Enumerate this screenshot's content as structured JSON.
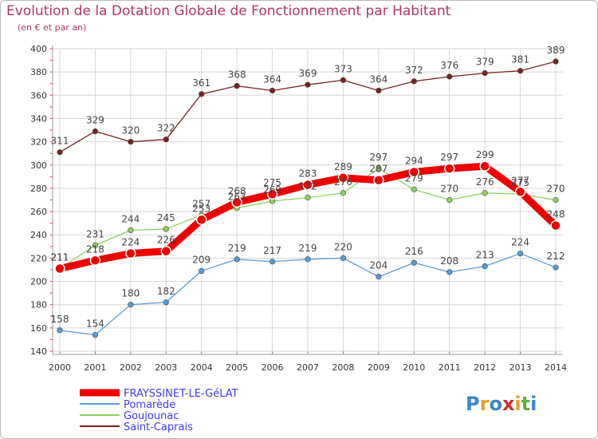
{
  "chart_data": {
    "type": "line",
    "title": "Evolution de la Dotation Globale de Fonctionnement par Habitant",
    "subtitle": "(en € et par an)",
    "x": [
      "2000",
      "2001",
      "2002",
      "2003",
      "2004",
      "2005",
      "2006",
      "2007",
      "2008",
      "2009",
      "2010",
      "2011",
      "2012",
      "2013",
      "2014"
    ],
    "ylim": [
      140,
      400
    ],
    "yticks": [
      140,
      160,
      180,
      200,
      220,
      240,
      260,
      280,
      300,
      320,
      340,
      360,
      380,
      400
    ],
    "grid": true,
    "series": [
      {
        "name": "Saint-Caprais",
        "color": "#7a2222",
        "values": [
          311,
          329,
          320,
          322,
          361,
          368,
          364,
          369,
          373,
          364,
          372,
          376,
          379,
          381,
          389
        ]
      },
      {
        "name": "Pomarède",
        "color": "#5b9bd5",
        "values": [
          158,
          154,
          180,
          182,
          209,
          219,
          217,
          219,
          220,
          204,
          216,
          208,
          213,
          224,
          212
        ]
      },
      {
        "name": "Goujounac",
        "color": "#90d060",
        "values": [
          211,
          231,
          244,
          245,
          257,
          263,
          269,
          272,
          276,
          297,
          279,
          270,
          276,
          275,
          270
        ]
      },
      {
        "name": "FRAYSSINET-LE-GéLAT",
        "color": "#ee0000",
        "values": [
          211,
          218,
          224,
          226,
          253,
          268,
          275,
          283,
          289,
          287,
          294,
          297,
          299,
          277,
          248
        ]
      }
    ],
    "legend": [
      "FRAYSSINET-LE-GéLAT",
      "Pomarède",
      "Goujounac",
      "Saint-Caprais"
    ],
    "legend_placement": "bottom-left"
  },
  "logo": {
    "letters": [
      "P",
      "r",
      "o",
      "x",
      "i",
      "t",
      "i"
    ]
  }
}
